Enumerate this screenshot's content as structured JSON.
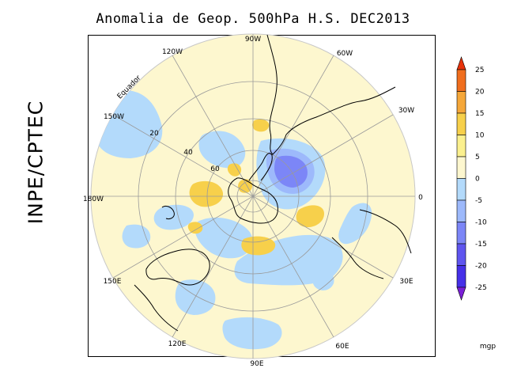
{
  "title": "Anomalia de Geop. 500hPa H.S. DEC2013",
  "institution": "INPE/CPTEC",
  "map": {
    "projection": "polar-stereographic-south",
    "longitude_labels": [
      "90W",
      "60W",
      "30W",
      "0",
      "30E",
      "60E",
      "90E",
      "120E",
      "150E",
      "180W",
      "150W",
      "120W"
    ],
    "latitude_labels": [
      "20",
      "40",
      "60"
    ],
    "equator_label": "Equador"
  },
  "colorbar": {
    "unit": "mgp",
    "tick_labels": [
      "25",
      "20",
      "15",
      "10",
      "5",
      "0",
      "-5",
      "-10",
      "-15",
      "-20",
      "-25"
    ],
    "colors": [
      "#e8320a",
      "#f06e1e",
      "#f5a73a",
      "#f7d04b",
      "#fbf08e",
      "#fdf7cf",
      "#b3dafb",
      "#9db9fb",
      "#7c86f7",
      "#5f55ef",
      "#4630e8",
      "#7a1fd6"
    ]
  }
}
